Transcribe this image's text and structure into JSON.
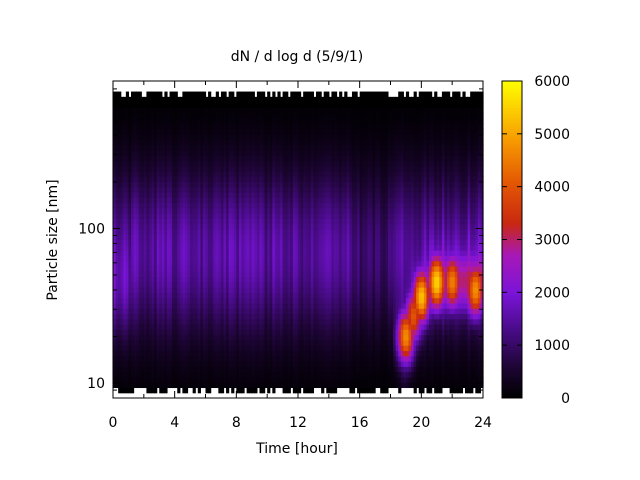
{
  "chart_data": {
    "type": "heatmap",
    "title": "dN / d log d (5/9/1)",
    "xlabel": "Time [hour]",
    "ylabel": "Particle size [nm]",
    "xlim": [
      0,
      24
    ],
    "ylim": [
      8,
      900
    ],
    "yscale": "log",
    "x_ticks": [
      0,
      4,
      8,
      12,
      16,
      20,
      24
    ],
    "x_minor_ticks": [
      2,
      6,
      10,
      14,
      18,
      22
    ],
    "y_ticks": [
      10,
      100
    ],
    "colorbar": {
      "range": [
        0,
        6000
      ],
      "ticks": [
        0,
        1000,
        2000,
        3000,
        4000,
        5000,
        6000
      ],
      "palette": [
        "#000000",
        "#3c0a6e",
        "#7b18c8",
        "#a81ed8",
        "#d0280e",
        "#e85c04",
        "#f8a000",
        "#ffff00"
      ]
    },
    "features": {
      "background_peak_size_nm": 70,
      "background_level": 1500,
      "nucleation_event_start_hour": 18.5,
      "nucleation_event_initial_size_nm": 15,
      "peak_concentrations": [
        {
          "time": 19.0,
          "size_nm": 20,
          "value": 4600
        },
        {
          "time": 19.5,
          "size_nm": 27,
          "value": 3800
        },
        {
          "time": 20.0,
          "size_nm": 36,
          "value": 5000
        },
        {
          "time": 21.0,
          "size_nm": 45,
          "value": 5200
        },
        {
          "time": 22.0,
          "size_nm": 45,
          "value": 4200
        },
        {
          "time": 23.5,
          "size_nm": 40,
          "value": 4400
        }
      ]
    }
  }
}
